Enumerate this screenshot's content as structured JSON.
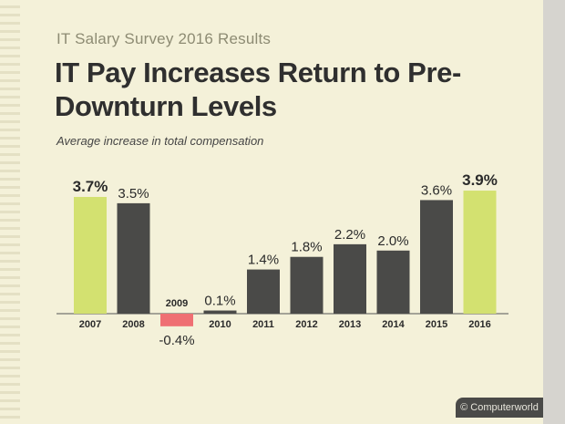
{
  "supertitle": "IT Salary Survey 2016 Results",
  "title": "IT Pay Increases Return to Pre-Downturn Levels",
  "subtitle": "Average increase in total compensation",
  "footer": "© Computerworld",
  "colors": {
    "bar_default": "#4a4a48",
    "bar_highlight": "#d3e170",
    "bar_negative": "#ef6f73",
    "background": "#f4f1d9"
  },
  "chart_data": {
    "type": "bar",
    "categories": [
      "2007",
      "2008",
      "2009",
      "2010",
      "2011",
      "2012",
      "2013",
      "2014",
      "2015",
      "2016"
    ],
    "values": [
      3.7,
      3.5,
      -0.4,
      0.1,
      1.4,
      1.8,
      2.2,
      2.0,
      3.6,
      3.9
    ],
    "data_labels": [
      "3.7%",
      "3.5%",
      "-0.4%",
      "0.1%",
      "1.4%",
      "1.8%",
      "2.2%",
      "2.0%",
      "3.6%",
      "3.9%"
    ],
    "highlight": [
      "2007",
      "2016"
    ],
    "ylim": [
      -0.4,
      3.9
    ],
    "grid": false,
    "xlabel": "",
    "ylabel": ""
  }
}
